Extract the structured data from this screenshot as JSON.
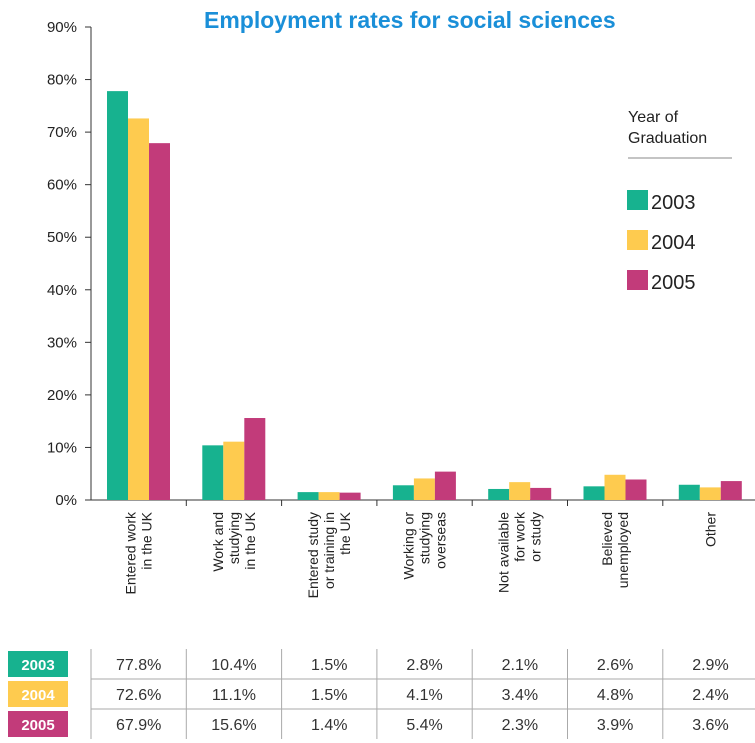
{
  "chart_data": {
    "type": "bar",
    "title": "Employment rates for social sciences",
    "categories": [
      [
        "Entered work",
        "in the UK"
      ],
      [
        "Work and",
        "studying",
        "in the UK"
      ],
      [
        "Entered study",
        "or training in",
        "the UK"
      ],
      [
        "Working or",
        "studying",
        "overseas"
      ],
      [
        "Not available",
        "for work",
        "or study"
      ],
      [
        "Believed",
        "unemployed"
      ],
      [
        "Other"
      ]
    ],
    "series": [
      {
        "name": "2003",
        "color": "#17b28f",
        "values": [
          77.8,
          10.4,
          1.5,
          2.8,
          2.1,
          2.6,
          2.9
        ]
      },
      {
        "name": "2004",
        "color": "#fecb4f",
        "values": [
          72.6,
          11.1,
          1.5,
          4.1,
          3.4,
          4.8,
          2.4
        ]
      },
      {
        "name": "2005",
        "color": "#c23b7a",
        "values": [
          67.9,
          15.6,
          1.4,
          5.4,
          2.3,
          3.9,
          3.6
        ]
      }
    ],
    "ylim": [
      0,
      90
    ],
    "yticks": [
      "0%",
      "10%",
      "20%",
      "30%",
      "40%",
      "50%",
      "60%",
      "70%",
      "80%",
      "90%"
    ],
    "legend": {
      "title_lines": [
        "Year of",
        "Graduation"
      ],
      "placement": "right"
    },
    "grid": false,
    "table": {
      "rows": [
        {
          "year": "2003",
          "cells": [
            "77.8%",
            "10.4%",
            "1.5%",
            "2.8%",
            "2.1%",
            "2.6%",
            "2.9%"
          ]
        },
        {
          "year": "2004",
          "cells": [
            "72.6%",
            "11.1%",
            "1.5%",
            "4.1%",
            "3.4%",
            "4.8%",
            "2.4%"
          ]
        },
        {
          "year": "2005",
          "cells": [
            "67.9%",
            "15.6%",
            "1.4%",
            "5.4%",
            "2.3%",
            "3.9%",
            "3.6%"
          ]
        }
      ]
    }
  }
}
